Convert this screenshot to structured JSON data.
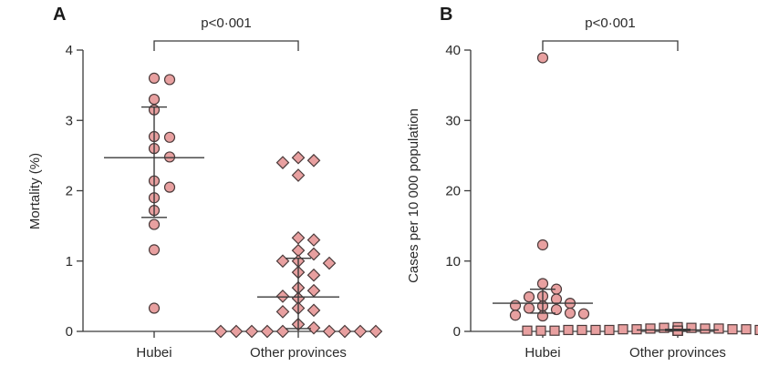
{
  "chart_data": [
    {
      "type": "scatter",
      "panel": "A",
      "ylabel": "Mortality (%)",
      "xlabel": "",
      "ylim": [
        0,
        4
      ],
      "yticks": [
        "0",
        "1",
        "2",
        "3",
        "4"
      ],
      "categories": [
        "Hubei",
        "Other provinces"
      ],
      "significance": "p<0·001",
      "grid": false,
      "marker_color": "#e8a0a0",
      "series": [
        {
          "category": "Hubei",
          "marker": "circle",
          "values": [
            3.6,
            3.58,
            3.3,
            3.15,
            2.77,
            2.76,
            2.6,
            2.48,
            2.14,
            2.05,
            1.9,
            1.72,
            1.52,
            1.16,
            0.33
          ],
          "median": 2.47,
          "iqr": [
            1.62,
            3.19
          ]
        },
        {
          "category": "Other provinces",
          "marker": "diamond",
          "values": [
            2.47,
            2.43,
            2.4,
            2.22,
            1.33,
            1.3,
            1.15,
            1.1,
            1.0,
            1.0,
            0.97,
            0.84,
            0.8,
            0.62,
            0.58,
            0.5,
            0.47,
            0.33,
            0.3,
            0.28,
            0.1,
            0.05,
            0.0,
            0.0,
            0.0,
            0.0,
            0.0,
            0.0,
            0.0,
            0.0,
            0.0
          ],
          "median": 0.49,
          "iqr": [
            0.04,
            1.04
          ]
        }
      ]
    },
    {
      "type": "scatter",
      "panel": "B",
      "ylabel": "Cases per 10 000 population",
      "xlabel": "",
      "ylim": [
        0,
        40
      ],
      "yticks": [
        "0",
        "10",
        "20",
        "30",
        "40"
      ],
      "categories": [
        "Hubei",
        "Other provinces"
      ],
      "significance": "p<0·001",
      "grid": false,
      "marker_color": "#e8a0a0",
      "series": [
        {
          "category": "Hubei",
          "marker": "circle",
          "values": [
            38.9,
            12.3,
            6.8,
            6.0,
            5.0,
            4.9,
            4.6,
            4.0,
            3.7,
            3.6,
            3.3,
            3.1,
            2.6,
            2.5,
            2.3,
            2.2
          ],
          "median": 4.0,
          "iqr": [
            2.6,
            6.0
          ]
        },
        {
          "category": "Other provinces",
          "marker": "square",
          "values": [
            0.6,
            0.5,
            0.5,
            0.4,
            0.4,
            0.4,
            0.3,
            0.3,
            0.3,
            0.3,
            0.2,
            0.2,
            0.2,
            0.2,
            0.2,
            0.2,
            0.2,
            0.1,
            0.1,
            0.1,
            0.1,
            0.1,
            0.1,
            0.1,
            0.1,
            0.1,
            0.1,
            0.1,
            0.1,
            0.1,
            0.1
          ],
          "median": 0.2,
          "iqr": [
            0.1,
            0.3
          ]
        }
      ]
    }
  ]
}
